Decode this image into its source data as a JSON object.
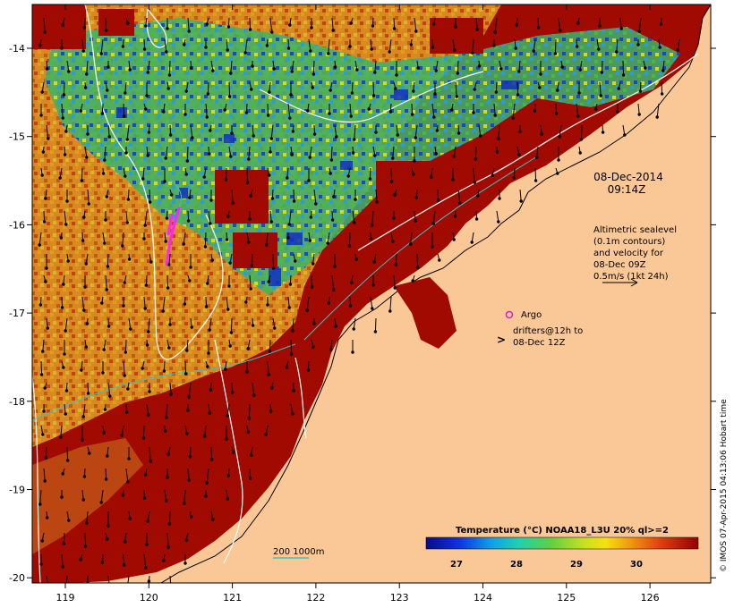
{
  "map": {
    "lon_ticks": [
      "119",
      "120",
      "121",
      "122",
      "123",
      "124",
      "125",
      "126"
    ],
    "lat_ticks": [
      "-14",
      "-15",
      "-16",
      "-17",
      "-18",
      "-19",
      "-20"
    ],
    "timestamp_date": "08-Dec-2014",
    "timestamp_time": "09:14Z",
    "altimetry_note": [
      "Altimetric sealevel",
      "(0.1m contours)",
      "and velocity for",
      "08-Dec 09Z",
      "0.5m/s (1kt 24h)"
    ],
    "argo_label": "Argo",
    "drifter_label_1": "drifters@12h to",
    "drifter_label_2": "08-Dec 12Z",
    "depth_legend": "200  1000m",
    "colorbar_title": "Temperature (°C) NOAA18_L3U 20% ql>=2",
    "colorbar_ticks": [
      "27",
      "28",
      "29",
      "30"
    ],
    "credit": "© IMOS 07-Apr-2015 04:13:06 Hobart time"
  },
  "colors": {
    "land": "#f9c896",
    "warm": "#a00a00",
    "argo": "#d020d0",
    "drifter": "#ff22ff",
    "isobath": "#40c0c0",
    "contour": "#ffffff"
  }
}
